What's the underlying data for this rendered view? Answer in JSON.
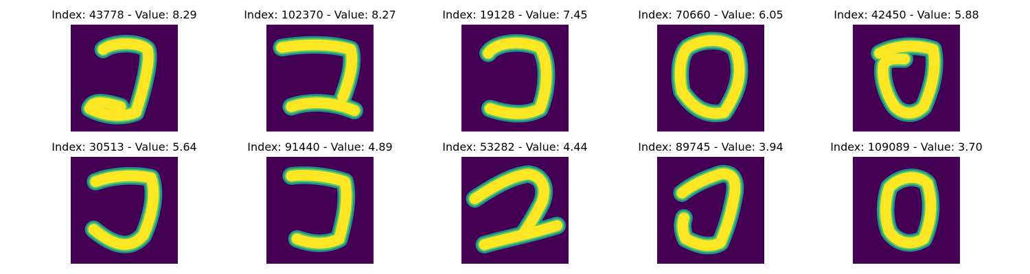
{
  "colors": {
    "background": "#440154",
    "stroke_edge": "#21918c",
    "stroke_mid": "#5ec962",
    "stroke_core": "#fde725"
  },
  "panels": [
    {
      "title": "Index: 43778 - Value: 8.29"
    },
    {
      "title": "Index: 102370 - Value: 8.27"
    },
    {
      "title": "Index: 19128 - Value: 7.45"
    },
    {
      "title": "Index: 70660 - Value: 6.05"
    },
    {
      "title": "Index: 42450 - Value: 5.88"
    },
    {
      "title": "Index: 30513 - Value: 5.64"
    },
    {
      "title": "Index: 91440 - Value: 4.89"
    },
    {
      "title": "Index: 53282 - Value: 4.44"
    },
    {
      "title": "Index: 89745 - Value: 3.94"
    },
    {
      "title": "Index: 109089 - Value: 3.70"
    }
  ]
}
